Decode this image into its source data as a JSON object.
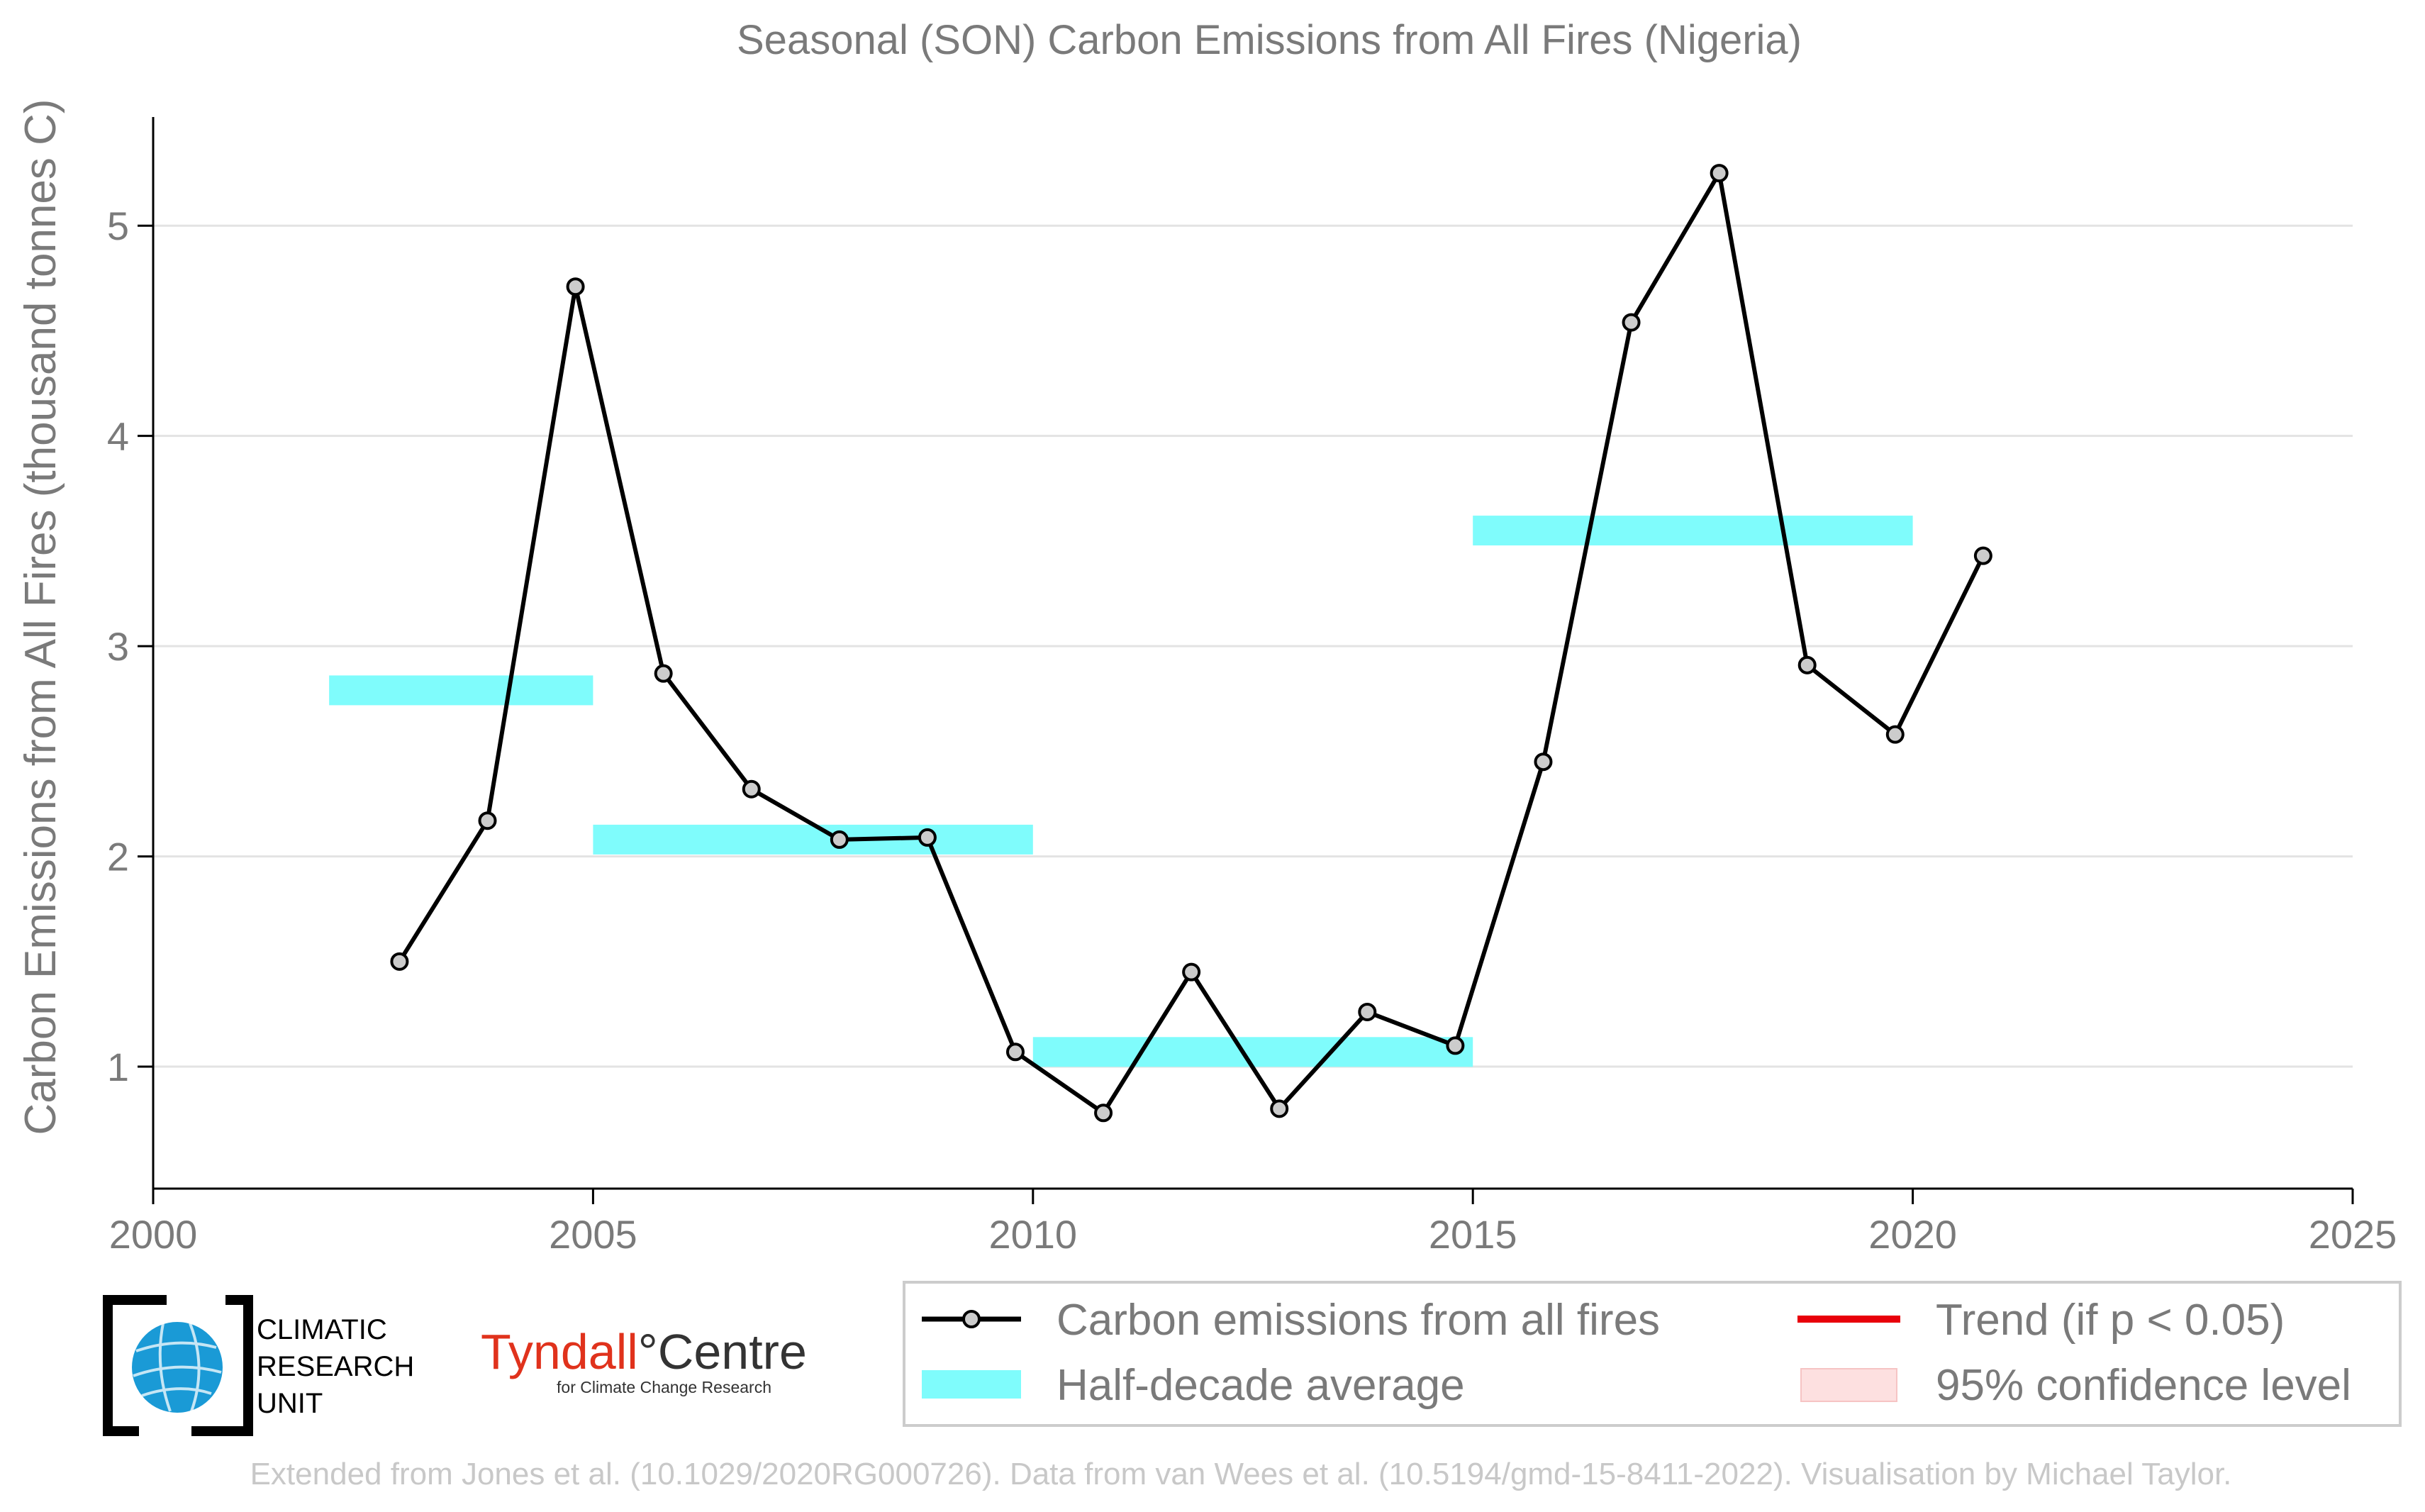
{
  "chart_data": {
    "type": "line",
    "title": "Seasonal (SON) Carbon Emissions from All Fires (Nigeria)",
    "xlabel": "",
    "ylabel": "Carbon Emissions from All Fires (thousand tonnes C)",
    "xlim": [
      2000,
      2025
    ],
    "ylim": [
      0.42,
      5.5
    ],
    "x_ticks": [
      "2000",
      "2005",
      "2010",
      "2015",
      "2020",
      "2025"
    ],
    "y_ticks": [
      "1",
      "2",
      "3",
      "4",
      "5"
    ],
    "grid": "horizontal",
    "legend_position": "bottom-right",
    "series": [
      {
        "name": "Carbon emissions from all fires",
        "color": "#000000",
        "marker_fill": "#cccccc",
        "x": [
          2002.8,
          2003.8,
          2004.8,
          2005.8,
          2006.8,
          2007.8,
          2008.8,
          2009.8,
          2010.8,
          2011.8,
          2012.8,
          2013.8,
          2014.8,
          2015.8,
          2016.8,
          2017.8,
          2018.8,
          2019.8,
          2020.8
        ],
        "y": [
          1.5,
          2.17,
          4.71,
          2.87,
          2.32,
          2.08,
          2.09,
          1.07,
          0.78,
          1.45,
          0.8,
          1.26,
          1.1,
          2.45,
          4.54,
          5.25,
          2.91,
          2.58,
          3.43
        ]
      }
    ],
    "half_decade_averages": {
      "name": "Half-decade average",
      "color": "#7ffcfc",
      "segments": [
        {
          "x0": 2002,
          "x1": 2005,
          "y": 2.79
        },
        {
          "x0": 2005,
          "x1": 2010,
          "y": 2.08
        },
        {
          "x0": 2010,
          "x1": 2015,
          "y": 1.07
        },
        {
          "x0": 2015,
          "x1": 2020,
          "y": 3.55
        }
      ]
    },
    "legend": [
      {
        "label": "Carbon emissions from all fires",
        "kind": "line-marker",
        "color": "#000000"
      },
      {
        "label": "Trend (if p < 0.05)",
        "kind": "line",
        "color": "#e8000b"
      },
      {
        "label": "Half-decade average",
        "kind": "band",
        "color": "#7ffcfc"
      },
      {
        "label": "95% confidence level",
        "kind": "patch",
        "color": "#fde0e0"
      }
    ]
  },
  "logos": {
    "cru": {
      "lines": [
        "CLIMATIC",
        "RESEARCH",
        "UNIT"
      ]
    },
    "tyndall": {
      "name": "Tyndall",
      "name2": "Centre",
      "degree": "°",
      "subtitle": "for Climate Change Research",
      "color": "#e0321c"
    }
  },
  "footer": "Extended from Jones et al. (10.1029/2020RG000726). Data from van Wees et al. (10.5194/gmd-15-8411-2022). Visualisation by Michael Taylor."
}
